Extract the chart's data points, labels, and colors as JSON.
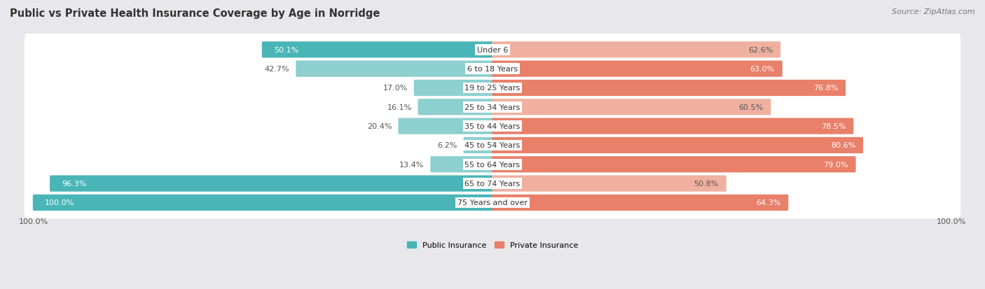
{
  "title": "Public vs Private Health Insurance Coverage by Age in Norridge",
  "source": "Source: ZipAtlas.com",
  "categories": [
    "Under 6",
    "6 to 18 Years",
    "19 to 25 Years",
    "25 to 34 Years",
    "35 to 44 Years",
    "45 to 54 Years",
    "55 to 64 Years",
    "65 to 74 Years",
    "75 Years and over"
  ],
  "public": [
    50.1,
    42.7,
    17.0,
    16.1,
    20.4,
    6.2,
    13.4,
    96.3,
    100.0
  ],
  "private": [
    62.6,
    63.0,
    76.8,
    60.5,
    78.5,
    80.6,
    79.0,
    50.8,
    64.3
  ],
  "public_color": "#4ab5b7",
  "private_color": "#e8806a",
  "public_light_color": "#8ecfcf",
  "private_light_color": "#f0b0a0",
  "bg_color": "#e8e8ec",
  "row_bg_color": "#f2f2f5",
  "title_fontsize": 10.5,
  "label_fontsize": 8.0,
  "source_fontsize": 8.0,
  "max_val": 100.0,
  "public_threshold": 50,
  "private_threshold": 65,
  "legend_label_public": "Public Insurance",
  "legend_label_private": "Private Insurance"
}
